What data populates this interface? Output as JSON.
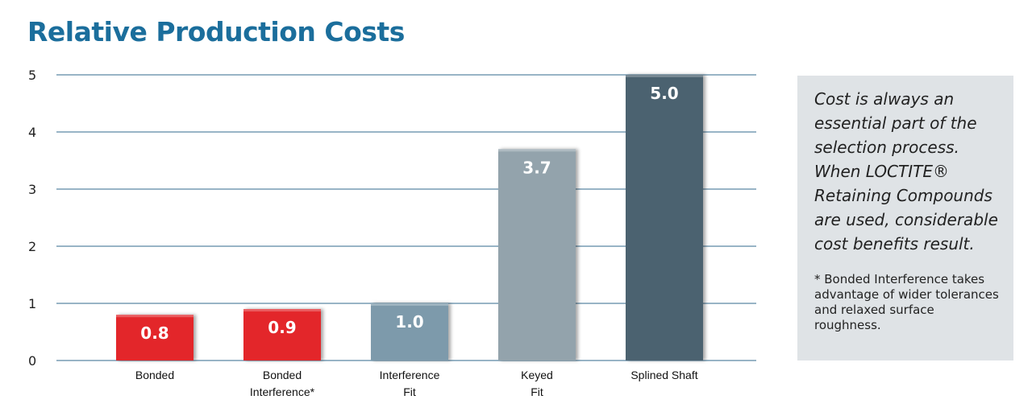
{
  "chart_data": {
    "type": "bar",
    "title": "Relative Production Costs",
    "categories": [
      [
        "Bonded"
      ],
      [
        "Bonded",
        "Interference*"
      ],
      [
        "Interference",
        "Fit"
      ],
      [
        "Keyed",
        "Fit"
      ],
      [
        "Splined Shaft"
      ]
    ],
    "values": [
      0.8,
      0.9,
      1.0,
      3.7,
      5.0
    ],
    "value_labels": [
      "0.8",
      "0.9",
      "1.0",
      "3.7",
      "5.0"
    ],
    "bar_colors": [
      "#e3262b",
      "#e3262b",
      "#7d9aab",
      "#93a3ac",
      "#4c6270"
    ],
    "ylim": [
      0,
      5
    ],
    "yticks": [
      0,
      1,
      2,
      3,
      4,
      5
    ],
    "grid": true,
    "gridline_color": "#5a86a3"
  },
  "sidebar": {
    "note": "Cost is always an essential part of the selection process. When LOCTITE® Retaining Compounds are used, considerable cost benefits result.",
    "footnote": "* Bonded Interference takes advantage of wider tolerances and relaxed surface roughness."
  }
}
